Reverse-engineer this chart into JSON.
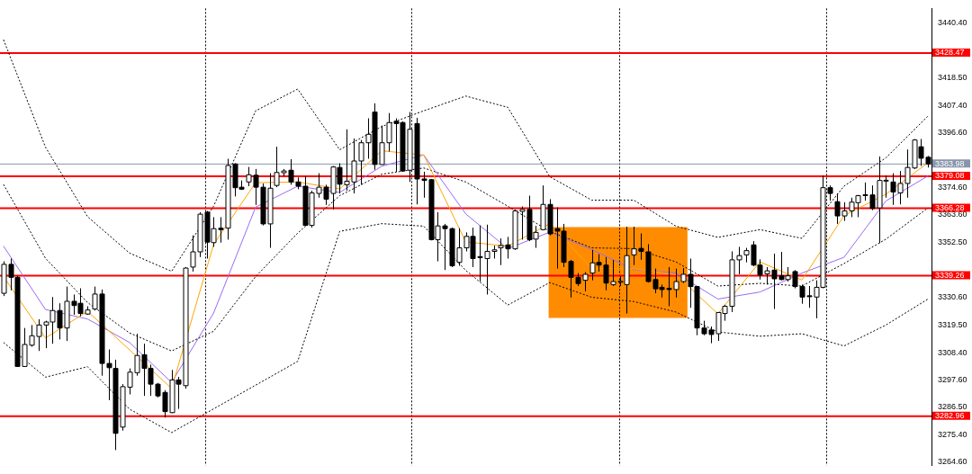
{
  "chart_data": {
    "type": "candlestick",
    "tick_labels": "y",
    "categories": [
      null,
      null,
      null,
      null,
      null,
      null,
      null,
      null,
      null,
      null,
      null,
      null,
      null,
      null,
      null,
      null,
      null,
      null,
      null,
      null,
      null,
      null,
      null,
      null,
      null,
      null,
      null,
      null,
      null,
      null,
      null,
      null,
      null,
      null,
      null,
      null,
      null,
      null,
      null,
      null,
      null,
      null,
      null,
      null,
      null,
      null,
      null,
      null,
      null,
      null,
      null,
      null,
      null,
      null,
      null,
      null,
      null,
      null,
      null,
      null,
      null,
      null,
      null,
      null,
      null,
      null,
      null,
      null,
      null,
      null,
      null,
      null,
      null,
      null,
      null,
      null,
      null,
      null,
      null,
      null,
      null,
      null,
      null,
      null,
      null,
      null,
      null,
      null,
      null,
      null,
      null,
      null,
      null,
      null,
      null,
      null,
      null,
      null,
      null,
      null,
      null,
      null,
      null,
      null,
      null,
      null,
      null,
      null,
      null,
      null,
      null,
      null,
      null,
      null,
      null,
      null,
      null,
      null,
      null,
      null,
      null,
      null,
      null,
      null,
      null,
      null,
      null,
      null,
      null,
      null,
      null,
      null,
      null
    ],
    "ohlc": [
      [
        3332.2,
        3345.0,
        3331.1,
        3343.8
      ],
      [
        3343.8,
        3346.1,
        3333.4,
        3338.6
      ],
      [
        3338.6,
        3339.2,
        3302.7,
        3302.9
      ],
      [
        3302.9,
        3318.3,
        3302.7,
        3311.7
      ],
      [
        3311.4,
        3319.5,
        3310.8,
        3315.2
      ],
      [
        3314.9,
        3321.8,
        3309.1,
        3319.5
      ],
      [
        3319.5,
        3321.2,
        3310.2,
        3320.7
      ],
      [
        3320.7,
        3330.7,
        3312.0,
        3325.3
      ],
      [
        3325.3,
        3328.2,
        3313.7,
        3318.3
      ],
      [
        3318.3,
        3334.9,
        3313.1,
        3329.0
      ],
      [
        3329.0,
        3331.7,
        3323.6,
        3327.3
      ],
      [
        3328.2,
        3334.2,
        3323.0,
        3324.1
      ],
      [
        3323.9,
        3327.0,
        3323.6,
        3325.5
      ],
      [
        3325.9,
        3334.9,
        3325.3,
        3331.9
      ],
      [
        3331.9,
        3333.7,
        3299.2,
        3304.1
      ],
      [
        3304.1,
        3309.7,
        3289.4,
        3302.4
      ],
      [
        3302.1,
        3305.6,
        3269.4,
        3276.1
      ],
      [
        3278.6,
        3295.8,
        3277.2,
        3294.8
      ],
      [
        3294.6,
        3302.1,
        3291.7,
        3300.6
      ],
      [
        3300.4,
        3316.0,
        3299.2,
        3307.3
      ],
      [
        3307.6,
        3312.0,
        3291.1,
        3302.1
      ],
      [
        3302.1,
        3303.6,
        3291.1,
        3295.8
      ],
      [
        3295.8,
        3296.3,
        3290.5,
        3291.1
      ],
      [
        3292.5,
        3293.4,
        3282.4,
        3284.8
      ],
      [
        3284.4,
        3301.5,
        3284.2,
        3297.5
      ],
      [
        3297.5,
        3298.7,
        3285.9,
        3295.8
      ],
      [
        3295.2,
        3342.7,
        3294.0,
        3342.3
      ],
      [
        3342.7,
        3355.4,
        3340.9,
        3348.8
      ],
      [
        3348.8,
        3364.7,
        3346.7,
        3363.9
      ],
      [
        3364.7,
        3365.2,
        3346.1,
        3352.7
      ],
      [
        3352.5,
        3362.7,
        3350.8,
        3358.1
      ],
      [
        3358.3,
        3362.7,
        3352.5,
        3357.7
      ],
      [
        3358.3,
        3386.1,
        3353.7,
        3383.4
      ],
      [
        3384.0,
        3384.3,
        3371.0,
        3374.5
      ],
      [
        3374.7,
        3377.4,
        3373.6,
        3373.9
      ],
      [
        3376.8,
        3382.8,
        3375.1,
        3379.7
      ],
      [
        3379.5,
        3382.0,
        3367.6,
        3374.7
      ],
      [
        3374.7,
        3376.2,
        3359.4,
        3360.0
      ],
      [
        3360.0,
        3380.3,
        3350.4,
        3374.3
      ],
      [
        3375.4,
        3390.9,
        3374.7,
        3380.6
      ],
      [
        3380.5,
        3382.0,
        3379.1,
        3381.2
      ],
      [
        3381.5,
        3385.9,
        3375.7,
        3376.8
      ],
      [
        3376.8,
        3378.6,
        3373.9,
        3375.1
      ],
      [
        3375.1,
        3379.1,
        3359.2,
        3359.4
      ],
      [
        3359.4,
        3373.3,
        3358.5,
        3372.4
      ],
      [
        3372.2,
        3380.3,
        3370.5,
        3374.7
      ],
      [
        3374.7,
        3375.7,
        3367.6,
        3369.9
      ],
      [
        3372.2,
        3383.2,
        3365.8,
        3382.8
      ],
      [
        3382.6,
        3384.3,
        3372.2,
        3375.9
      ],
      [
        3375.7,
        3397.9,
        3373.3,
        3377.1
      ],
      [
        3376.8,
        3394.2,
        3372.2,
        3385.2
      ],
      [
        3385.2,
        3393.6,
        3375.7,
        3392.5
      ],
      [
        3392.5,
        3402.3,
        3386.1,
        3395.9
      ],
      [
        3404.8,
        3408.3,
        3381.7,
        3383.8
      ],
      [
        3383.8,
        3399.4,
        3383.8,
        3392.5
      ],
      [
        3392.5,
        3404.4,
        3389.0,
        3400.6
      ],
      [
        3401.1,
        3402.3,
        3380.9,
        3400.2
      ],
      [
        3400.6,
        3401.1,
        3380.9,
        3381.2
      ],
      [
        3381.5,
        3404.8,
        3376.8,
        3397.9
      ],
      [
        3400.2,
        3402.5,
        3367.8,
        3378.0
      ],
      [
        3378.0,
        3380.9,
        3370.5,
        3377.4
      ],
      [
        3377.7,
        3378.0,
        3353.4,
        3353.7
      ],
      [
        3353.7,
        3364.7,
        3345.0,
        3359.2
      ],
      [
        3359.2,
        3360.0,
        3341.5,
        3358.1
      ],
      [
        3358.1,
        3358.5,
        3342.7,
        3343.2
      ],
      [
        3344.6,
        3358.3,
        3343.2,
        3350.4
      ],
      [
        3350.4,
        3356.6,
        3349.0,
        3355.0
      ],
      [
        3355.0,
        3358.5,
        3342.7,
        3346.1
      ],
      [
        3346.9,
        3359.4,
        3336.9,
        3346.5
      ],
      [
        3346.1,
        3359.7,
        3331.7,
        3349.0
      ],
      [
        3349.0,
        3351.3,
        3346.1,
        3349.6
      ],
      [
        3350.4,
        3354.2,
        3343.5,
        3351.3
      ],
      [
        3351.6,
        3354.8,
        3346.1,
        3350.0
      ],
      [
        3350.0,
        3365.8,
        3349.6,
        3365.2
      ],
      [
        3365.0,
        3367.0,
        3353.7,
        3365.8
      ],
      [
        3365.8,
        3371.3,
        3353.1,
        3353.7
      ],
      [
        3353.9,
        3359.2,
        3350.4,
        3356.6
      ],
      [
        3357.7,
        3375.4,
        3357.4,
        3367.8
      ],
      [
        3367.8,
        3369.9,
        3355.4,
        3356.0
      ],
      [
        3358.1,
        3366.6,
        3342.1,
        3357.1
      ],
      [
        3357.1,
        3360.0,
        3342.7,
        3344.6
      ],
      [
        3345.0,
        3345.6,
        3330.5,
        3338.6
      ],
      [
        3338.6,
        3340.3,
        3335.1,
        3336.1
      ],
      [
        3337.4,
        3340.7,
        3333.0,
        3339.8
      ],
      [
        3340.3,
        3349.6,
        3337.4,
        3344.4
      ],
      [
        3344.6,
        3347.9,
        3340.9,
        3343.5
      ],
      [
        3343.5,
        3346.7,
        3333.4,
        3336.3
      ],
      [
        3335.7,
        3345.6,
        3335.1,
        3336.9
      ],
      [
        3336.8,
        3339.2,
        3335.1,
        3337.0
      ],
      [
        3335.7,
        3358.9,
        3324.1,
        3347.3
      ],
      [
        3347.6,
        3358.9,
        3343.5,
        3350.0
      ],
      [
        3350.2,
        3356.2,
        3345.6,
        3349.0
      ],
      [
        3348.8,
        3351.9,
        3336.5,
        3336.9
      ],
      [
        3337.7,
        3342.1,
        3332.2,
        3334.0
      ],
      [
        3334.6,
        3335.7,
        3330.5,
        3333.7
      ],
      [
        3334.2,
        3342.7,
        3327.0,
        3333.7
      ],
      [
        3333.7,
        3342.1,
        3330.5,
        3336.9
      ],
      [
        3336.9,
        3342.3,
        3336.3,
        3339.8
      ],
      [
        3339.8,
        3346.1,
        3326.4,
        3334.9
      ],
      [
        3334.9,
        3335.1,
        3315.4,
        3318.3
      ],
      [
        3318.3,
        3321.2,
        3315.4,
        3316.0
      ],
      [
        3317.5,
        3318.9,
        3312.2,
        3315.7
      ],
      [
        3316.0,
        3324.7,
        3313.1,
        3324.5
      ],
      [
        3324.1,
        3327.6,
        3321.2,
        3327.0
      ],
      [
        3327.0,
        3349.0,
        3324.7,
        3345.6
      ],
      [
        3345.6,
        3350.8,
        3339.8,
        3347.3
      ],
      [
        3347.6,
        3350.4,
        3344.6,
        3349.3
      ],
      [
        3351.6,
        3353.1,
        3343.0,
        3343.5
      ],
      [
        3343.5,
        3345.8,
        3337.7,
        3339.5
      ],
      [
        3340.0,
        3342.7,
        3335.7,
        3341.2
      ],
      [
        3341.5,
        3348.1,
        3325.9,
        3338.0
      ],
      [
        3339.2,
        3348.8,
        3337.4,
        3337.7
      ],
      [
        3337.7,
        3342.7,
        3336.9,
        3339.2
      ],
      [
        3340.9,
        3341.5,
        3334.2,
        3334.9
      ],
      [
        3334.9,
        3335.7,
        3328.0,
        3330.7
      ],
      [
        3331.2,
        3335.1,
        3326.4,
        3331.0
      ],
      [
        3330.7,
        3337.4,
        3322.2,
        3334.6
      ],
      [
        3334.6,
        3379.4,
        3334.2,
        3374.5
      ],
      [
        3374.5,
        3375.4,
        3369.3,
        3372.2
      ],
      [
        3368.9,
        3372.2,
        3360.0,
        3363.2
      ],
      [
        3363.2,
        3368.7,
        3361.2,
        3365.2
      ],
      [
        3365.2,
        3370.5,
        3362.7,
        3368.7
      ],
      [
        3368.5,
        3371.6,
        3362.7,
        3371.3
      ],
      [
        3371.5,
        3376.6,
        3369.3,
        3371.7
      ],
      [
        3371.6,
        3375.4,
        3365.5,
        3366.2
      ],
      [
        3366.4,
        3387.0,
        3352.3,
        3377.4
      ],
      [
        3377.3,
        3379.4,
        3370.5,
        3377.5
      ],
      [
        3376.8,
        3380.3,
        3367.6,
        3372.8
      ],
      [
        3372.4,
        3381.2,
        3367.8,
        3376.2
      ],
      [
        3376.2,
        3389.8,
        3370.5,
        3382.6
      ],
      [
        3382.4,
        3394.0,
        3382.0,
        3393.6
      ],
      [
        3390.9,
        3394.0,
        3383.2,
        3386.3
      ],
      [
        3386.7,
        3387.2,
        3382.6,
        3384.0
      ]
    ],
    "series": [
      {
        "type": "line",
        "color": "#ffa500",
        "values": [
          3338.9,
          null,
          null,
          null,
          null,
          null,
          3314.3,
          null,
          null,
          null,
          null,
          null,
          3325.0,
          null,
          null,
          null,
          null,
          null,
          null,
          null,
          null,
          null,
          null,
          null,
          3294.1,
          null,
          null,
          null,
          null,
          null,
          3351.8,
          null,
          null,
          null,
          null,
          null,
          3376.5,
          null,
          null,
          null,
          null,
          null,
          3376.8,
          null,
          null,
          null,
          null,
          null,
          3374.0,
          null,
          null,
          null,
          null,
          null,
          3389.3,
          null,
          null,
          null,
          null,
          null,
          3387.6,
          null,
          null,
          null,
          null,
          null,
          3352.8,
          null,
          null,
          null,
          null,
          null,
          3351.1,
          null,
          null,
          null,
          null,
          null,
          3360.1,
          null,
          null,
          null,
          null,
          null,
          3342.1,
          null,
          null,
          null,
          null,
          null,
          3342.1,
          null,
          null,
          null,
          null,
          null,
          3339.6,
          null,
          null,
          null,
          null,
          null,
          3324.0,
          null,
          null,
          null,
          null,
          null,
          3344.8,
          null,
          null,
          null,
          null,
          null,
          3337.5,
          null,
          null,
          null,
          null,
          null,
          3363.3,
          null,
          null,
          null,
          null,
          null,
          3371.9,
          null,
          null,
          null,
          null,
          null,
          3384.5
        ]
      },
      {
        "type": "line",
        "color": "#9b6bf0",
        "values": [
          3351.1,
          null,
          null,
          null,
          null,
          null,
          3325.7,
          null,
          null,
          null,
          null,
          null,
          3321.9,
          null,
          null,
          null,
          null,
          null,
          3312.5,
          null,
          null,
          null,
          null,
          null,
          3296.5,
          null,
          null,
          null,
          null,
          null,
          3324.3,
          null,
          null,
          null,
          null,
          null,
          3366.7,
          null,
          null,
          null,
          null,
          null,
          3375.1,
          null,
          null,
          null,
          null,
          null,
          3372.6,
          null,
          null,
          null,
          null,
          null,
          3383.1,
          null,
          null,
          null,
          null,
          null,
          3387.6,
          null,
          null,
          null,
          null,
          null,
          3364.0,
          null,
          null,
          null,
          null,
          null,
          3350.1,
          null,
          null,
          null,
          null,
          null,
          3356.7,
          null,
          null,
          null,
          null,
          null,
          3349.7,
          null,
          null,
          null,
          null,
          null,
          3341.7,
          null,
          null,
          null,
          null,
          null,
          3340.3,
          null,
          null,
          null,
          null,
          null,
          3329.9,
          null,
          null,
          null,
          null,
          null,
          3332.7,
          null,
          null,
          null,
          null,
          null,
          3340.3,
          null,
          null,
          null,
          null,
          null,
          3346.6,
          null,
          null,
          null,
          null,
          null,
          3369.2,
          null,
          null,
          null,
          null,
          null,
          3379.2
        ]
      },
      {
        "type": "line",
        "color": "#000000",
        "line_style": "dashed",
        "values": [
          3433.8,
          null,
          null,
          null,
          null,
          null,
          3390.7,
          null,
          null,
          null,
          null,
          null,
          3362.9,
          null,
          null,
          null,
          null,
          null,
          3348.3,
          null,
          null,
          null,
          null,
          null,
          3341.0,
          null,
          null,
          null,
          null,
          null,
          3367.1,
          null,
          null,
          null,
          null,
          null,
          3405.3,
          null,
          null,
          null,
          null,
          null,
          3414.0,
          null,
          null,
          null,
          null,
          null,
          3389.7,
          null,
          null,
          null,
          null,
          null,
          3399.0,
          null,
          null,
          null,
          null,
          null,
          3405.3,
          null,
          null,
          null,
          null,
          null,
          3411.2,
          null,
          null,
          null,
          null,
          null,
          3406.7,
          null,
          null,
          null,
          null,
          null,
          3378.9,
          null,
          null,
          null,
          null,
          null,
          3369.5,
          null,
          null,
          null,
          null,
          null,
          3369.5,
          null,
          null,
          null,
          null,
          null,
          3359.1,
          null,
          null,
          null,
          null,
          null,
          3354.6,
          null,
          null,
          null,
          null,
          null,
          3357.7,
          null,
          null,
          null,
          null,
          null,
          3354.2,
          null,
          null,
          null,
          null,
          null,
          3375.1,
          null,
          null,
          null,
          null,
          null,
          3386.5,
          null,
          null,
          null,
          null,
          null,
          3403.2
        ]
      },
      {
        "type": "line",
        "color": "#000000",
        "line_style": "dashed",
        "values": [
          3375.8,
          null,
          null,
          null,
          null,
          null,
          3346.2,
          null,
          null,
          null,
          null,
          null,
          3328.5,
          null,
          null,
          null,
          null,
          null,
          3316.3,
          null,
          null,
          null,
          null,
          null,
          3309.1,
          null,
          null,
          null,
          null,
          null,
          3317.0,
          null,
          null,
          null,
          null,
          null,
          3338.9,
          null,
          null,
          null,
          null,
          null,
          3356.3,
          null,
          null,
          null,
          null,
          null,
          3371.3,
          null,
          null,
          null,
          null,
          null,
          3379.9,
          null,
          null,
          null,
          null,
          null,
          3382.4,
          null,
          null,
          null,
          null,
          null,
          3376.8,
          null,
          null,
          null,
          null,
          null,
          3367.1,
          null,
          null,
          null,
          null,
          null,
          3357.0,
          null,
          null,
          null,
          null,
          null,
          3350.4,
          null,
          null,
          null,
          null,
          null,
          3350.1,
          null,
          null,
          null,
          null,
          null,
          3344.8,
          null,
          null,
          null,
          null,
          null,
          3335.1,
          null,
          null,
          null,
          null,
          null,
          3336.2,
          null,
          null,
          null,
          null,
          null,
          3335.1,
          null,
          null,
          null,
          null,
          null,
          3344.1,
          null,
          null,
          null,
          null,
          null,
          3353.9,
          null,
          null,
          null,
          null,
          null,
          3366.4
        ]
      },
      {
        "type": "line",
        "color": "#000000",
        "line_style": "dashed",
        "values": [
          3312.5,
          null,
          null,
          null,
          null,
          null,
          3298.6,
          null,
          null,
          null,
          null,
          null,
          3302.8,
          null,
          null,
          null,
          null,
          null,
          3285.8,
          null,
          null,
          null,
          null,
          null,
          3276.4,
          null,
          null,
          null,
          null,
          null,
          null,
          null,
          null,
          null,
          null,
          null,
          null,
          null,
          null,
          null,
          null,
          null,
          3304.9,
          null,
          null,
          null,
          null,
          null,
          3357.0,
          null,
          null,
          null,
          null,
          null,
          3360.1,
          null,
          null,
          null,
          null,
          null,
          3359.1,
          null,
          null,
          null,
          null,
          null,
          3341.4,
          null,
          null,
          null,
          null,
          null,
          3327.5,
          null,
          null,
          null,
          null,
          null,
          3336.5,
          null,
          null,
          null,
          null,
          null,
          3330.6,
          null,
          null,
          null,
          null,
          null,
          3328.9,
          null,
          null,
          null,
          null,
          null,
          3324.7,
          null,
          null,
          null,
          null,
          null,
          3316.7,
          null,
          null,
          null,
          null,
          null,
          3315.0,
          null,
          null,
          null,
          null,
          null,
          3316.0,
          null,
          null,
          null,
          null,
          null,
          3311.1,
          null,
          null,
          null,
          null,
          null,
          3319.5,
          null,
          null,
          null,
          null,
          null,
          3329.9
        ]
      }
    ],
    "ylim": [
      3263.2,
      3446.3
    ],
    "yticks": [
      {
        "value": 3440.4,
        "label": "3440.40"
      },
      {
        "value": 3418.5,
        "label": "3418.50"
      },
      {
        "value": 3407.4,
        "label": "3407.40"
      },
      {
        "value": 3396.6,
        "label": "3396.60"
      },
      {
        "value": 3374.6,
        "label": "3374.60"
      },
      {
        "value": 3363.6,
        "label": "3363.60"
      },
      {
        "value": 3352.5,
        "label": "3352.50"
      },
      {
        "value": 3330.6,
        "label": "3330.60"
      },
      {
        "value": 3319.5,
        "label": "3319.50"
      },
      {
        "value": 3308.4,
        "label": "3308.40"
      },
      {
        "value": 3297.6,
        "label": "3297.60"
      },
      {
        "value": 3286.5,
        "label": "3286.50"
      },
      {
        "value": 3275.4,
        "label": "3275.40"
      },
      {
        "value": 3264.6,
        "label": "3264.60"
      }
    ],
    "bands": [
      {
        "axis": "y",
        "from": 3322.3,
        "to": 3358.7,
        "color": "#ff8c00"
      }
    ],
    "ref_lines": [
      {
        "axis": "y",
        "value": 3428.47,
        "label": "3428.47",
        "color": "#ff0000"
      },
      {
        "axis": "y",
        "value": 3383.98,
        "label": "3383.98",
        "color": "#8896ab"
      },
      {
        "axis": "y",
        "value": 3379.08,
        "label": "3379.08",
        "color": "#ff0000"
      },
      {
        "axis": "y",
        "value": 3366.28,
        "label": "3366.28",
        "color": "#ff0000"
      },
      {
        "axis": "y",
        "value": 3339.26,
        "label": "3339.26",
        "color": "#ff0000"
      },
      {
        "axis": "y",
        "value": 3282.96,
        "label": "3282.96",
        "color": "#ff0000"
      }
    ]
  }
}
